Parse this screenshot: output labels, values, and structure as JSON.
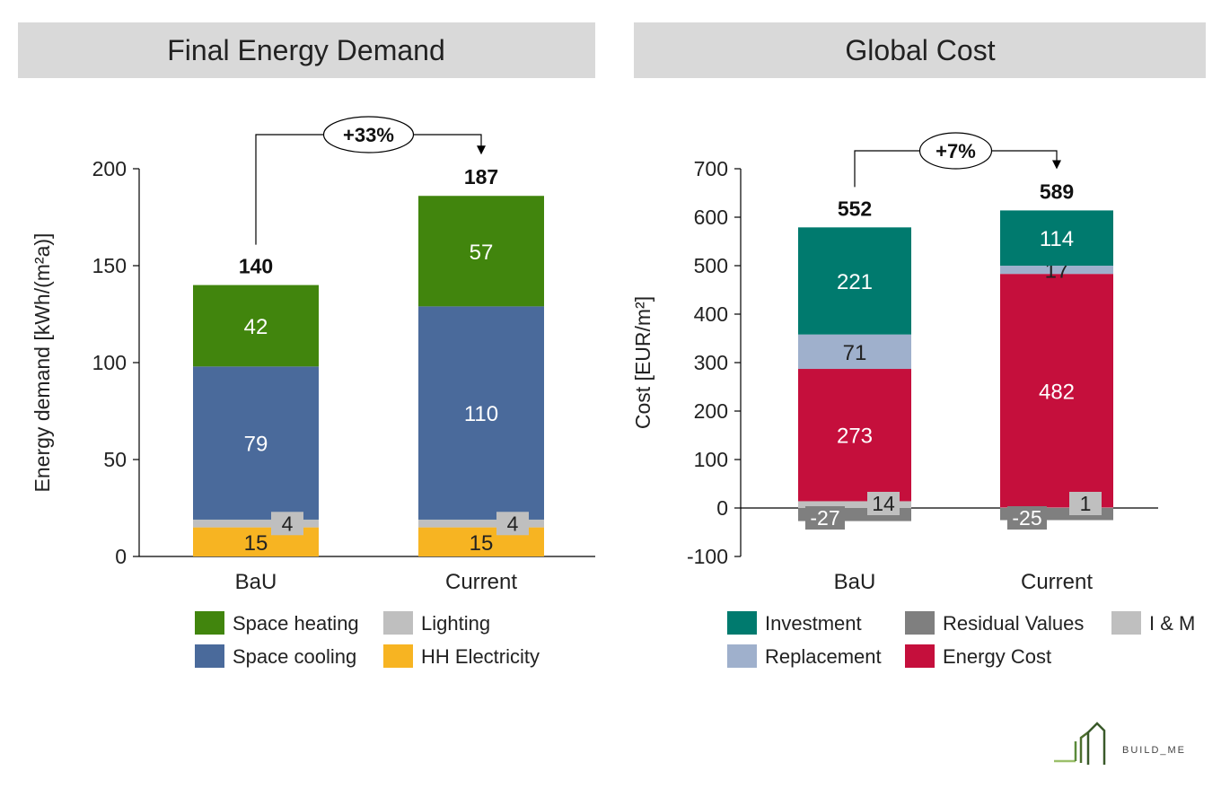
{
  "chart_data": [
    {
      "type": "bar",
      "stacked": true,
      "title": "Final Energy Demand",
      "xlabel": "",
      "ylabel": "Energy demand [kWh/(m²a)]",
      "ylim": [
        0,
        200
      ],
      "yticks": [
        0,
        50,
        100,
        150,
        200
      ],
      "categories": [
        "BaU",
        "Current"
      ],
      "totals": [
        140,
        187
      ],
      "change_annotation": "+33%",
      "series": [
        {
          "name": "HH Electricity",
          "values": [
            15,
            15
          ],
          "color": "#F7B422",
          "label_color": "#222222"
        },
        {
          "name": "Lighting",
          "values": [
            4,
            4
          ],
          "color": "#BFBFBF",
          "label_color": "#222222"
        },
        {
          "name": "Space cooling",
          "values": [
            79,
            110
          ],
          "color": "#4A6A9B",
          "label_color": "#ffffff"
        },
        {
          "name": "Space heating",
          "values": [
            42,
            57
          ],
          "color": "#41850D",
          "label_color": "#ffffff"
        }
      ],
      "legend_order": [
        "Space heating",
        "Lighting",
        "Space cooling",
        "HH Electricity"
      ],
      "legend_position": "bottom",
      "grid": false
    },
    {
      "type": "bar",
      "stacked": true,
      "title": "Global Cost",
      "xlabel": "",
      "ylabel": "Cost [EUR/m²]",
      "ylim": [
        -100,
        700
      ],
      "yticks": [
        -100,
        0,
        100,
        200,
        300,
        400,
        500,
        600,
        700
      ],
      "categories": [
        "BaU",
        "Current"
      ],
      "totals": [
        552,
        589
      ],
      "change_annotation": "+7%",
      "series": [
        {
          "name": "Residual Values",
          "values": [
            -27,
            -25
          ],
          "color": "#7F7F7F",
          "label_color": "#ffffff"
        },
        {
          "name": "I & M",
          "values": [
            14,
            1
          ],
          "color": "#BFBFBF",
          "label_color": "#222222"
        },
        {
          "name": "Energy Cost",
          "values": [
            273,
            482
          ],
          "color": "#C50F3C",
          "label_color": "#ffffff"
        },
        {
          "name": "Replacement",
          "values": [
            71,
            17
          ],
          "color": "#9FB0CC",
          "label_color": "#222222"
        },
        {
          "name": "Investment",
          "values": [
            221,
            114
          ],
          "color": "#007A6E",
          "label_color": "#ffffff"
        }
      ],
      "legend_order": [
        "Investment",
        "Residual Values",
        "I & M",
        "Replacement",
        "Energy Cost"
      ],
      "legend_position": "bottom",
      "grid": false
    }
  ],
  "logo": {
    "text": "BUILD_ME",
    "icon": "building-logo-icon"
  }
}
